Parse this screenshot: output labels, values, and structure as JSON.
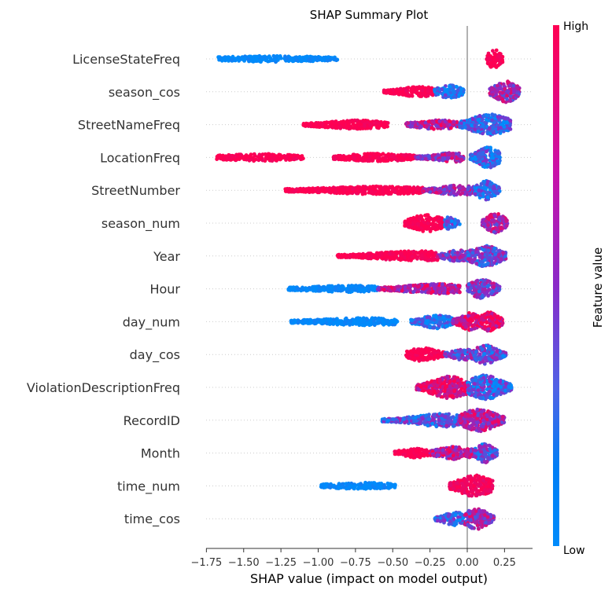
{
  "chart_data": {
    "type": "scatter",
    "subtype": "shap-beeswarm",
    "title": "SHAP Summary Plot",
    "xlabel": "SHAP value (impact on model output)",
    "ylabel": "",
    "xlim": [
      -1.78,
      0.45
    ],
    "xticks": [
      -1.75,
      -1.5,
      -1.25,
      -1.0,
      -0.75,
      -0.5,
      -0.25,
      0.0,
      0.25
    ],
    "xtick_labels": [
      "−1.75",
      "−1.50",
      "−1.25",
      "−1.00",
      "−0.75",
      "−0.50",
      "−0.25",
      "0.00",
      "0.25"
    ],
    "grid": false,
    "zero_line": true,
    "colorbar": {
      "label": "Feature value",
      "high_label": "High",
      "low_label": "Low",
      "high_color": "#ff0052",
      "mid_color": "#8a2bc8",
      "low_color": "#008bfb"
    },
    "features": [
      {
        "name": "LicenseStateFreq",
        "clusters": [
          {
            "from": -1.67,
            "to": -0.87,
            "peak": -1.3,
            "width": 0.9,
            "value": 0.0
          },
          {
            "from": 0.13,
            "to": 0.24,
            "peak": 0.18,
            "width": 4.0,
            "value": 1.0
          }
        ]
      },
      {
        "name": "season_cos",
        "clusters": [
          {
            "from": -0.56,
            "to": -0.22,
            "peak": -0.32,
            "width": 1.8,
            "value": 1.0
          },
          {
            "from": -0.22,
            "to": -0.02,
            "peak": -0.12,
            "width": 2.6,
            "value": 0.1
          },
          {
            "from": 0.15,
            "to": 0.35,
            "peak": 0.26,
            "width": 4.4,
            "value": 0.6
          }
        ]
      },
      {
        "name": "StreetNameFreq",
        "clusters": [
          {
            "from": -1.1,
            "to": -0.53,
            "peak": -0.75,
            "width": 1.5,
            "value": 1.0
          },
          {
            "from": -0.42,
            "to": -0.05,
            "peak": -0.2,
            "width": 1.6,
            "value": 0.7
          },
          {
            "from": -0.05,
            "to": 0.29,
            "peak": 0.15,
            "width": 4.4,
            "value": 0.2
          }
        ]
      },
      {
        "name": "LocationFreq",
        "clusters": [
          {
            "from": -1.68,
            "to": -1.1,
            "peak": -1.4,
            "width": 1.2,
            "value": 1.0
          },
          {
            "from": -0.9,
            "to": -0.35,
            "peak": -0.6,
            "width": 1.3,
            "value": 1.0
          },
          {
            "from": -0.35,
            "to": -0.02,
            "peak": -0.1,
            "width": 1.6,
            "value": 0.6
          },
          {
            "from": 0.02,
            "to": 0.22,
            "peak": 0.14,
            "width": 4.4,
            "value": 0.2
          }
        ]
      },
      {
        "name": "StreetNumber",
        "clusters": [
          {
            "from": -1.22,
            "to": -0.3,
            "peak": -0.6,
            "width": 1.3,
            "value": 1.0
          },
          {
            "from": -0.3,
            "to": 0.05,
            "peak": -0.05,
            "width": 1.8,
            "value": 0.55
          },
          {
            "from": 0.05,
            "to": 0.22,
            "peak": 0.12,
            "width": 4.0,
            "value": 0.15
          }
        ]
      },
      {
        "name": "season_num",
        "clusters": [
          {
            "from": -0.42,
            "to": -0.15,
            "peak": -0.27,
            "width": 3.6,
            "value": 1.0
          },
          {
            "from": -0.15,
            "to": -0.05,
            "peak": -0.12,
            "width": 2.4,
            "value": 0.2
          },
          {
            "from": 0.1,
            "to": 0.27,
            "peak": 0.19,
            "width": 4.0,
            "value": 0.6
          }
        ]
      },
      {
        "name": "Year",
        "clusters": [
          {
            "from": -0.87,
            "to": -0.2,
            "peak": -0.35,
            "width": 1.8,
            "value": 1.0
          },
          {
            "from": -0.2,
            "to": 0.02,
            "peak": -0.05,
            "width": 2.4,
            "value": 0.55
          },
          {
            "from": 0.0,
            "to": 0.26,
            "peak": 0.12,
            "width": 4.4,
            "value": 0.4
          }
        ]
      },
      {
        "name": "Hour",
        "clusters": [
          {
            "from": -1.2,
            "to": -0.6,
            "peak": -0.8,
            "width": 1.0,
            "value": 0.0
          },
          {
            "from": -0.6,
            "to": -0.05,
            "peak": -0.2,
            "width": 1.8,
            "value": 0.7
          },
          {
            "from": 0.0,
            "to": 0.22,
            "peak": 0.1,
            "width": 4.0,
            "value": 0.45
          }
        ]
      },
      {
        "name": "day_num",
        "clusters": [
          {
            "from": -1.19,
            "to": -0.47,
            "peak": -0.7,
            "width": 1.2,
            "value": 0.0
          },
          {
            "from": -0.38,
            "to": -0.1,
            "peak": -0.2,
            "width": 2.6,
            "value": 0.1
          },
          {
            "from": -0.1,
            "to": 0.08,
            "peak": 0.02,
            "width": 3.6,
            "value": 0.85
          },
          {
            "from": 0.08,
            "to": 0.24,
            "peak": 0.15,
            "width": 4.0,
            "value": 0.9
          }
        ]
      },
      {
        "name": "day_cos",
        "clusters": [
          {
            "from": -0.41,
            "to": -0.15,
            "peak": -0.3,
            "width": 2.6,
            "value": 1.0
          },
          {
            "from": -0.15,
            "to": 0.05,
            "peak": -0.02,
            "width": 2.2,
            "value": 0.4
          },
          {
            "from": 0.05,
            "to": 0.26,
            "peak": 0.12,
            "width": 4.0,
            "value": 0.35
          }
        ]
      },
      {
        "name": "ViolationDescriptionFreq",
        "clusters": [
          {
            "from": -0.34,
            "to": 0.0,
            "peak": -0.12,
            "width": 4.6,
            "value": 0.9
          },
          {
            "from": 0.0,
            "to": 0.3,
            "peak": 0.12,
            "width": 5.2,
            "value": 0.25
          }
        ]
      },
      {
        "name": "RecordID",
        "clusters": [
          {
            "from": -0.57,
            "to": -0.05,
            "peak": -0.15,
            "width": 2.6,
            "value": 0.3
          },
          {
            "from": -0.05,
            "to": 0.25,
            "peak": 0.08,
            "width": 4.8,
            "value": 0.65
          }
        ]
      },
      {
        "name": "Month",
        "clusters": [
          {
            "from": -0.49,
            "to": -0.25,
            "peak": -0.35,
            "width": 1.6,
            "value": 1.0
          },
          {
            "from": -0.25,
            "to": 0.05,
            "peak": -0.08,
            "width": 2.6,
            "value": 0.7
          },
          {
            "from": 0.05,
            "to": 0.2,
            "peak": 0.12,
            "width": 4.0,
            "value": 0.35
          }
        ]
      },
      {
        "name": "time_num",
        "clusters": [
          {
            "from": -0.98,
            "to": -0.48,
            "peak": -0.7,
            "width": 1.0,
            "value": 0.0
          },
          {
            "from": -0.12,
            "to": 0.17,
            "peak": 0.05,
            "width": 4.6,
            "value": 0.95
          }
        ]
      },
      {
        "name": "time_cos",
        "clusters": [
          {
            "from": -0.22,
            "to": -0.02,
            "peak": -0.08,
            "width": 2.6,
            "value": 0.2
          },
          {
            "from": -0.02,
            "to": 0.18,
            "peak": 0.06,
            "width": 4.4,
            "value": 0.55
          }
        ]
      }
    ]
  }
}
